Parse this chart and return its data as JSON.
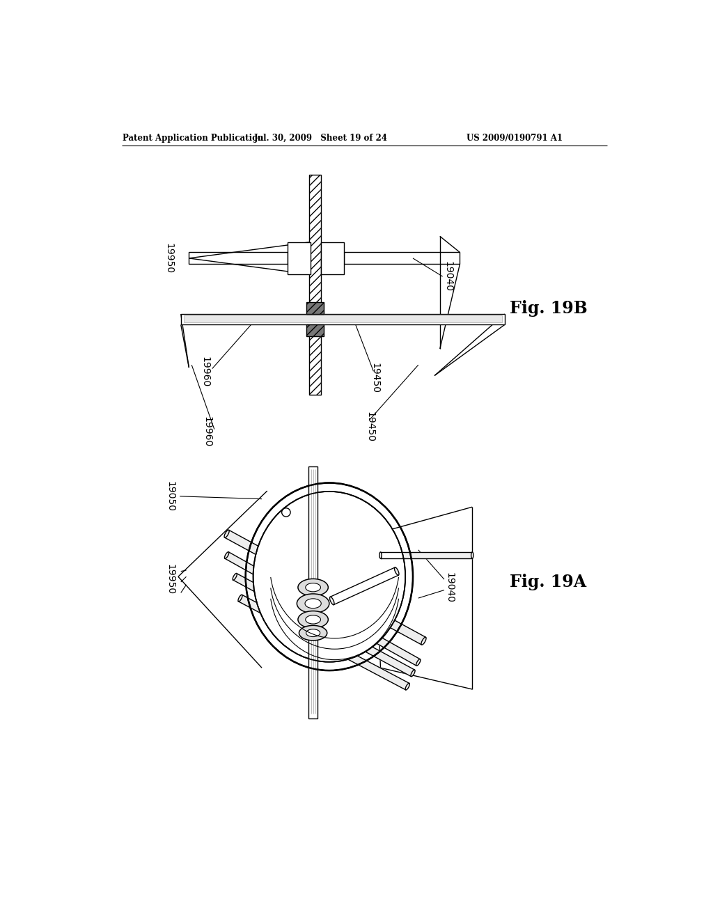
{
  "bg_color": "#ffffff",
  "page_width": 10.24,
  "page_height": 13.2,
  "header_left": "Patent Application Publication",
  "header_mid": "Jul. 30, 2009   Sheet 19 of 24",
  "header_right": "US 2009/0190791 A1",
  "fig19b_label": "Fig. 19B",
  "fig19a_label": "Fig. 19A",
  "label_19040_top": "19040",
  "label_19950_top": "19950",
  "label_19960": "19960",
  "label_19450": "19450",
  "label_19050": "19050",
  "label_19950_bot": "19950",
  "label_19040_bot": "19040"
}
